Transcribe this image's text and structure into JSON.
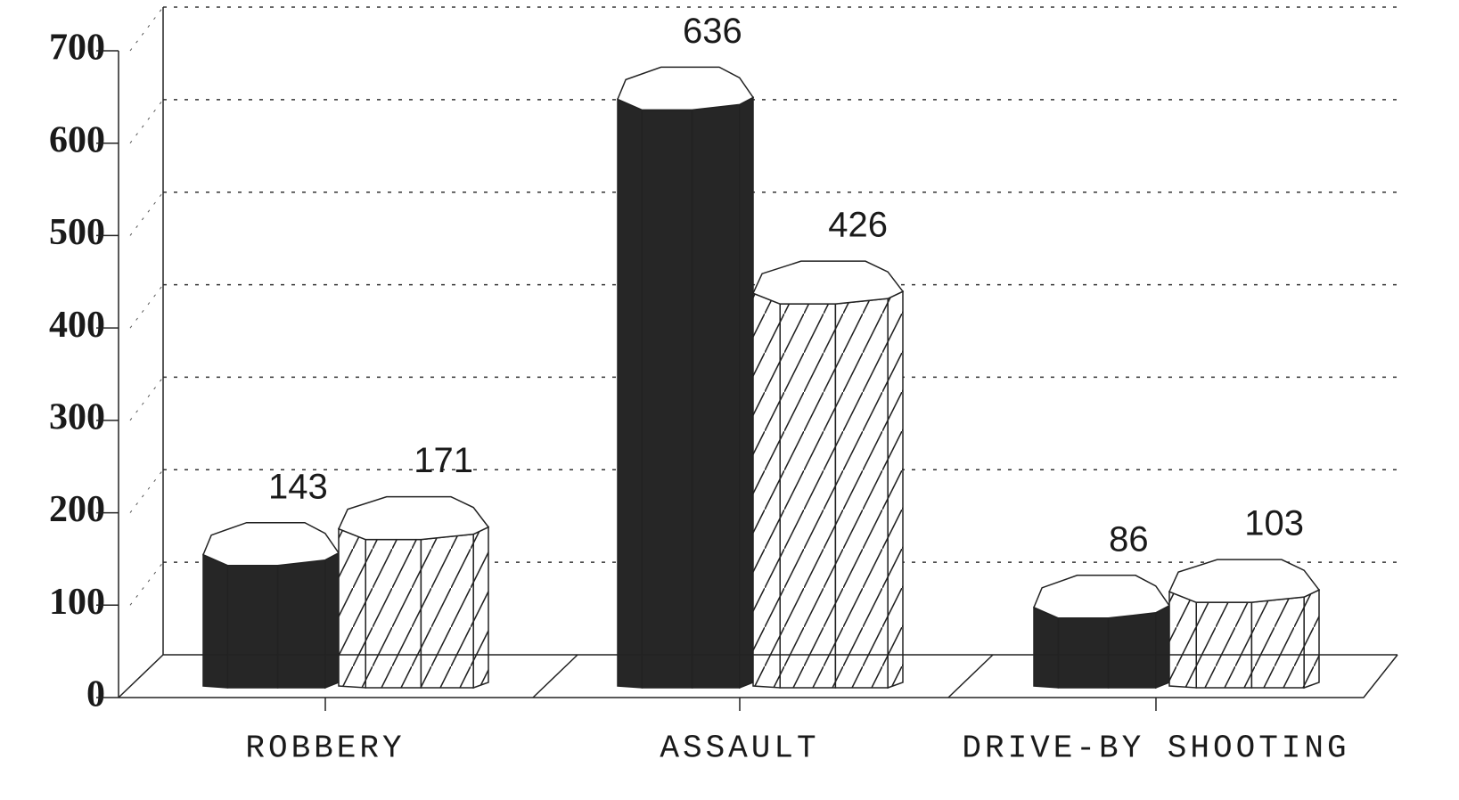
{
  "chart_data": {
    "type": "bar3d",
    "categories": [
      "ROBBERY",
      "ASSAULT",
      "DRIVE-BY SHOOTING"
    ],
    "series": [
      {
        "color": "#262626",
        "values": [
          143,
          636,
          86
        ]
      },
      {
        "color": "#ffffff",
        "pattern": "hatch",
        "values": [
          171,
          426,
          103
        ]
      }
    ],
    "ylim": [
      0,
      700
    ],
    "yticks": [
      0,
      100,
      200,
      300,
      400,
      500,
      600,
      700
    ],
    "grid": true
  }
}
